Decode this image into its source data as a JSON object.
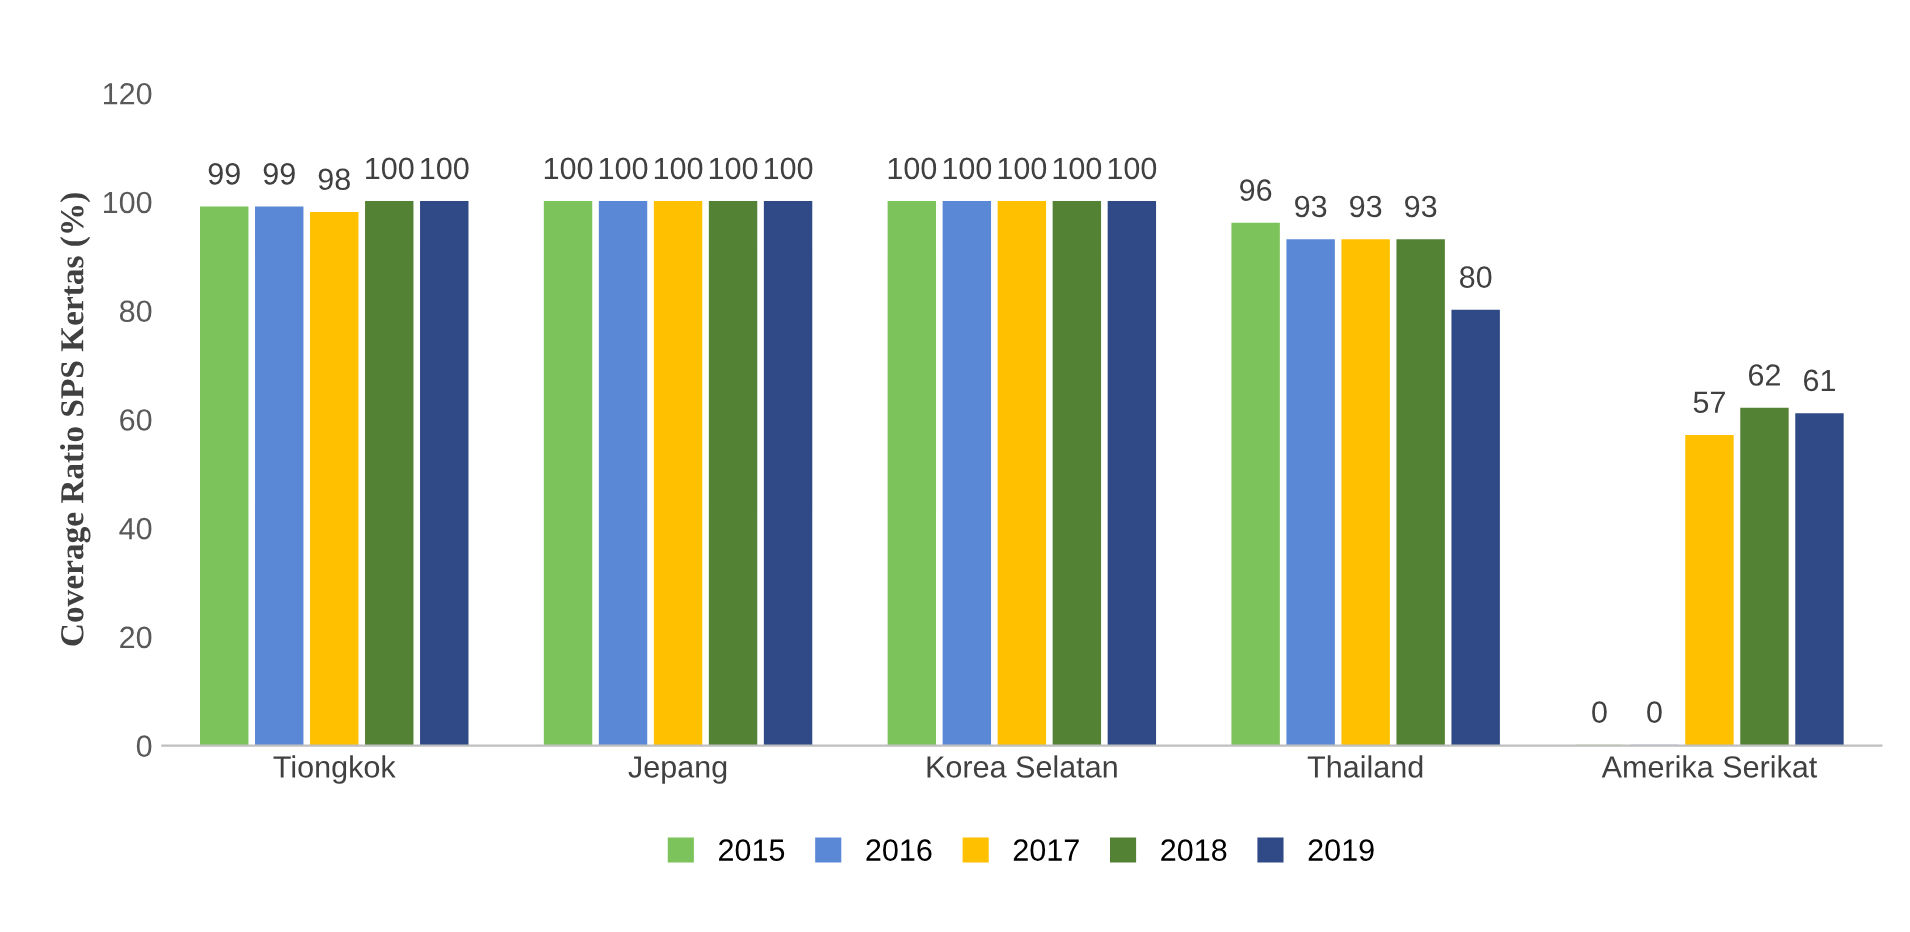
{
  "chart_data": {
    "type": "bar",
    "ylabel": "Coverage Ratio SPS Kertas (%)",
    "categories": [
      "Tiongkok",
      "Jepang",
      "Korea Selatan",
      "Thailand",
      "Amerika Serikat"
    ],
    "series": [
      {
        "name": "2015",
        "color": "#7dc35b",
        "values": [
          99,
          100,
          100,
          96,
          0
        ]
      },
      {
        "name": "2016",
        "color": "#5b88d6",
        "values": [
          99,
          100,
          100,
          93,
          0
        ]
      },
      {
        "name": "2017",
        "color": "#ffc000",
        "values": [
          98,
          100,
          100,
          93,
          57
        ]
      },
      {
        "name": "2018",
        "color": "#548235",
        "values": [
          100,
          100,
          100,
          93,
          62
        ]
      },
      {
        "name": "2019",
        "color": "#2f4a86",
        "values": [
          100,
          100,
          100,
          80,
          61
        ]
      }
    ],
    "ylim": [
      0,
      120
    ],
    "yticks": [
      0,
      20,
      40,
      60,
      80,
      100,
      120
    ],
    "grid": false,
    "legend": "bottom",
    "data_labels": true
  }
}
